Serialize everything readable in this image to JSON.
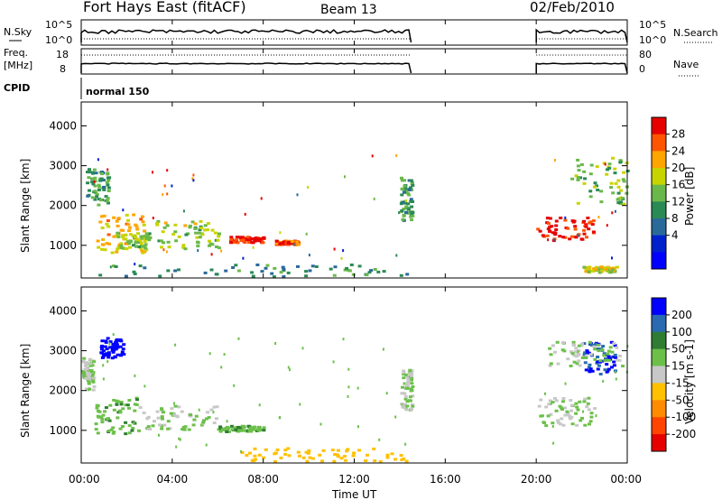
{
  "header": {
    "title": "Fort Hays East (fitACF)",
    "beam": "Beam 13",
    "date": "02/Feb/2010"
  },
  "panels": {
    "nsky": {
      "left_label": "N.Sky",
      "right_label": "N.Search",
      "left_ticks": [
        "10^5",
        "10^0"
      ],
      "right_ticks": [
        "10^5",
        "10^0"
      ]
    },
    "freq": {
      "left_label_1": "Freq.",
      "left_label_2": "[MHz]",
      "right_label": "Nave",
      "left_ticks": [
        "18",
        "8"
      ],
      "right_ticks": [
        "80",
        "0"
      ]
    },
    "cpid": {
      "label": "CPID",
      "mode": "normal 150"
    }
  },
  "colorbars": {
    "power": {
      "label": "Power [dB]",
      "ticks": [
        "28",
        "24",
        "20",
        "16",
        "12",
        "8",
        "4"
      ],
      "colors": [
        "#e60000",
        "#ff5500",
        "#ffa500",
        "#c8d400",
        "#6bb84a",
        "#2a8a55",
        "#2a6a9a",
        "#0022cc",
        "#0000ff"
      ]
    },
    "velocity": {
      "label": "Velocity [m s-1]",
      "ticks": [
        "200",
        "100",
        "50",
        "15",
        "-15",
        "-50",
        "-100",
        "-200"
      ],
      "colors": [
        "#0000ff",
        "#2a6ab0",
        "#2e7d32",
        "#6cc04a",
        "#c8c8c8",
        "#ffc000",
        "#ff8c00",
        "#ff4500",
        "#e60000"
      ]
    }
  },
  "axes": {
    "xlabel": "Time UT",
    "x_ticks": [
      "00:00",
      "04:00",
      "08:00",
      "12:00",
      "16:00",
      "20:00",
      "00:00"
    ],
    "ylabel": "Slant Range [km]",
    "y_ticks": [
      "4000",
      "3000",
      "2000",
      "1000"
    ]
  },
  "chart_data": [
    {
      "type": "heatmap",
      "name": "power",
      "xlabel": "Time UT",
      "ylabel": "Slant Range [km]",
      "xlim_hours": [
        0,
        24
      ],
      "ylim_km": [
        180,
        4600
      ],
      "colorbar_label": "Power [dB]",
      "colorbar_ticks": [
        4,
        8,
        12,
        16,
        20,
        24,
        28
      ],
      "data_gap_hours": [
        14.5,
        20.0
      ],
      "regions": [
        {
          "t": [
            0.2,
            1.2
          ],
          "r": [
            2000,
            2900
          ],
          "value": 10
        },
        {
          "t": [
            0.6,
            2.8
          ],
          "r": [
            800,
            1800
          ],
          "value": 18
        },
        {
          "t": [
            1.5,
            3.0
          ],
          "r": [
            900,
            1300
          ],
          "value": 14
        },
        {
          "t": [
            3.2,
            6.0
          ],
          "r": [
            900,
            1600
          ],
          "value": 14
        },
        {
          "t": [
            6.5,
            8.0
          ],
          "r": [
            1050,
            1200
          ],
          "value": 26
        },
        {
          "t": [
            8.5,
            9.5
          ],
          "r": [
            1000,
            1100
          ],
          "value": 22
        },
        {
          "t": [
            0.5,
            14.5
          ],
          "r": [
            200,
            500
          ],
          "value": 8
        },
        {
          "t": [
            14.0,
            14.5
          ],
          "r": [
            1600,
            2700
          ],
          "value": 10
        },
        {
          "t": [
            20.0,
            22.5
          ],
          "r": [
            1100,
            1700
          ],
          "value": 26
        },
        {
          "t": [
            21.5,
            24.0
          ],
          "r": [
            2000,
            3200
          ],
          "value": 12
        },
        {
          "t": [
            22.0,
            23.5
          ],
          "r": [
            300,
            450
          ],
          "value": 16
        }
      ]
    },
    {
      "type": "heatmap",
      "name": "velocity",
      "xlabel": "Time UT",
      "ylabel": "Slant Range [km]",
      "xlim_hours": [
        0,
        24
      ],
      "ylim_km": [
        180,
        4600
      ],
      "colorbar_label": "Velocity [m s-1]",
      "colorbar_ticks": [
        -200,
        -100,
        -50,
        -15,
        15,
        50,
        100,
        200
      ],
      "data_gap_hours": [
        14.5,
        20.0
      ],
      "regions": [
        {
          "t": [
            0.8,
            1.8
          ],
          "r": [
            2800,
            3300
          ],
          "value": 200
        },
        {
          "t": [
            0.0,
            0.5
          ],
          "r": [
            2000,
            2800
          ],
          "value": 0
        },
        {
          "t": [
            0.5,
            2.5
          ],
          "r": [
            900,
            1800
          ],
          "value": 30
        },
        {
          "t": [
            2.5,
            6.0
          ],
          "r": [
            1000,
            1600
          ],
          "value": 0
        },
        {
          "t": [
            6.0,
            8.0
          ],
          "r": [
            950,
            1100
          ],
          "value": 30
        },
        {
          "t": [
            7.0,
            14.5
          ],
          "r": [
            200,
            550
          ],
          "value": -60
        },
        {
          "t": [
            14.0,
            14.5
          ],
          "r": [
            1500,
            2500
          ],
          "value": 0
        },
        {
          "t": [
            20.0,
            22.5
          ],
          "r": [
            1100,
            1800
          ],
          "value": 0
        },
        {
          "t": [
            22.0,
            23.5
          ],
          "r": [
            2400,
            3200
          ],
          "value": 150
        },
        {
          "t": [
            20.5,
            23.8
          ],
          "r": [
            2600,
            3200
          ],
          "value": 0
        }
      ]
    }
  ]
}
